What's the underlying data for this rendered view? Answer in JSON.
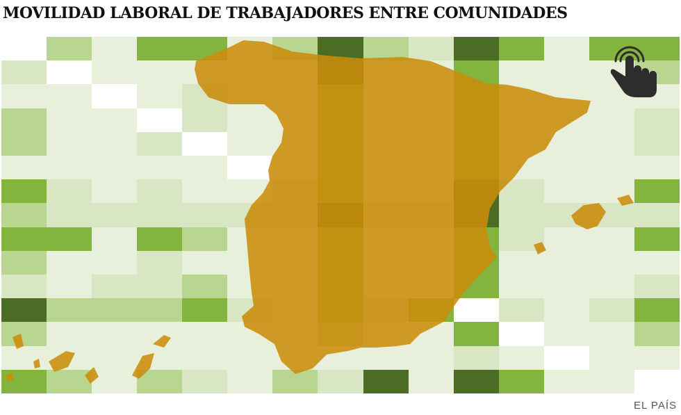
{
  "title": "MOVILIDAD LABORAL DE TRABAJADORES ENTRE COMUNIDADES",
  "credit": "EL PAÍS",
  "palette": {
    "0": "#ffffff",
    "1": "#e8f0dc",
    "2": "#d8e6c4",
    "3": "#b8d690",
    "4": "#82b43e",
    "5": "#4a6c24",
    "map_fill": "#c98c0a",
    "icon": "#2d2d2d"
  },
  "icons": {
    "interaction": "hand-pointer-icon"
  },
  "matrix": [
    [
      0,
      3,
      1,
      4,
      4,
      1,
      3,
      5,
      3,
      2,
      5,
      4,
      1,
      4,
      4
    ],
    [
      2,
      0,
      1,
      1,
      1,
      1,
      1,
      5,
      1,
      1,
      4,
      1,
      1,
      1,
      3
    ],
    [
      1,
      1,
      0,
      1,
      2,
      1,
      1,
      4,
      1,
      1,
      4,
      1,
      1,
      1,
      1
    ],
    [
      3,
      1,
      1,
      0,
      2,
      1,
      1,
      4,
      1,
      1,
      4,
      1,
      1,
      1,
      2
    ],
    [
      3,
      1,
      1,
      2,
      0,
      1,
      1,
      4,
      1,
      1,
      4,
      1,
      1,
      1,
      2
    ],
    [
      1,
      1,
      1,
      1,
      1,
      0,
      1,
      4,
      1,
      1,
      4,
      1,
      1,
      1,
      1
    ],
    [
      4,
      2,
      1,
      2,
      1,
      1,
      2,
      4,
      1,
      1,
      5,
      2,
      1,
      1,
      4
    ],
    [
      3,
      2,
      2,
      2,
      2,
      2,
      2,
      5,
      2,
      2,
      5,
      2,
      2,
      2,
      2
    ],
    [
      4,
      4,
      1,
      4,
      3,
      1,
      1,
      4,
      1,
      1,
      4,
      2,
      1,
      1,
      4
    ],
    [
      3,
      1,
      1,
      2,
      1,
      1,
      1,
      4,
      1,
      1,
      4,
      1,
      1,
      1,
      1
    ],
    [
      2,
      1,
      2,
      2,
      3,
      1,
      1,
      4,
      1,
      1,
      4,
      1,
      1,
      1,
      2
    ],
    [
      5,
      3,
      3,
      3,
      4,
      2,
      1,
      4,
      2,
      4,
      0,
      2,
      1,
      2,
      4
    ],
    [
      3,
      1,
      1,
      1,
      1,
      1,
      1,
      3,
      1,
      1,
      4,
      0,
      1,
      1,
      3
    ],
    [
      1,
      1,
      1,
      1,
      1,
      1,
      1,
      1,
      1,
      1,
      2,
      1,
      0,
      1,
      1
    ],
    [
      4,
      3,
      1,
      3,
      2,
      1,
      3,
      2,
      5,
      1,
      5,
      4,
      1,
      1,
      0
    ]
  ]
}
